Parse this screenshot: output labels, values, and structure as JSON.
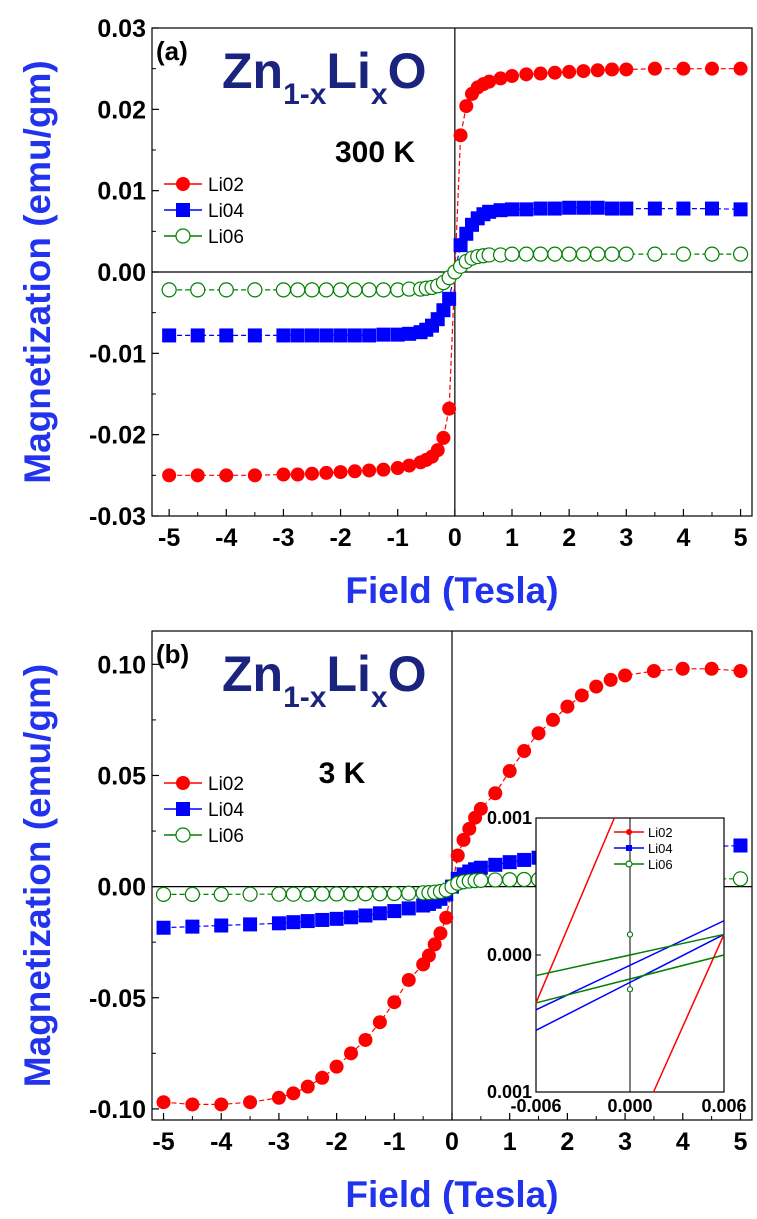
{
  "chart_data": [
    {
      "type": "line",
      "panel_label": "(a)",
      "compound": {
        "base1": "Zn",
        "sub1": "1-x",
        "base2": "Li",
        "sub2": "x",
        "base3": "O"
      },
      "temperature": "300 K",
      "xlabel": "Field (Tesla)",
      "ylabel": "Magnetization (emu/gm)",
      "xlim": [
        -5.3,
        5.2
      ],
      "ylim": [
        -0.03,
        0.03
      ],
      "xticks": [
        "-5",
        "-4",
        "-3",
        "-2",
        "-1",
        "0",
        "1",
        "2",
        "3",
        "4",
        "5"
      ],
      "yticks": [
        "-0.03",
        "-0.02",
        "-0.01",
        "0.00",
        "0.01",
        "0.02",
        "0.03"
      ],
      "legend_position": "middle-left",
      "series": [
        {
          "name": "Li02",
          "color": "#ff0000",
          "marker": "filled-circle",
          "x": [
            -5,
            -4.5,
            -4,
            -3.5,
            -3,
            -2.75,
            -2.5,
            -2.25,
            -2,
            -1.75,
            -1.5,
            -1.25,
            -1,
            -0.8,
            -0.6,
            -0.5,
            -0.4,
            -0.3,
            -0.2,
            -0.1,
            0,
            0.1,
            0.2,
            0.3,
            0.4,
            0.5,
            0.6,
            0.8,
            1,
            1.25,
            1.5,
            1.75,
            2,
            2.25,
            2.5,
            2.75,
            3,
            3.5,
            4,
            4.5,
            5
          ],
          "y": [
            -0.025,
            -0.025,
            -0.025,
            -0.025,
            -0.0249,
            -0.0249,
            -0.0248,
            -0.0247,
            -0.0246,
            -0.0245,
            -0.0244,
            -0.0243,
            -0.0241,
            -0.0238,
            -0.0234,
            -0.0231,
            -0.0227,
            -0.0219,
            -0.0204,
            -0.0168,
            0.0,
            0.0168,
            0.0204,
            0.0219,
            0.0227,
            0.0231,
            0.0234,
            0.0238,
            0.0241,
            0.0243,
            0.0244,
            0.0245,
            0.0246,
            0.0247,
            0.0248,
            0.0249,
            0.0249,
            0.025,
            0.025,
            0.025,
            0.025
          ]
        },
        {
          "name": "Li04",
          "color": "#0000ff",
          "marker": "filled-square",
          "x": [
            -5,
            -4.5,
            -4,
            -3.5,
            -3,
            -2.75,
            -2.5,
            -2.25,
            -2,
            -1.75,
            -1.5,
            -1.25,
            -1,
            -0.8,
            -0.6,
            -0.5,
            -0.4,
            -0.3,
            -0.2,
            -0.1,
            0.1,
            0.2,
            0.3,
            0.4,
            0.5,
            0.6,
            0.8,
            1,
            1.25,
            1.5,
            1.75,
            2,
            2.25,
            2.5,
            2.75,
            3,
            3.5,
            4,
            4.5,
            5
          ],
          "y": [
            -0.0078,
            -0.0078,
            -0.0078,
            -0.0078,
            -0.0078,
            -0.0078,
            -0.0078,
            -0.0078,
            -0.0078,
            -0.0078,
            -0.0078,
            -0.0077,
            -0.0077,
            -0.0076,
            -0.0074,
            -0.0071,
            -0.0066,
            -0.0058,
            -0.0047,
            -0.0033,
            0.0033,
            0.0047,
            0.0058,
            0.0066,
            0.0071,
            0.0074,
            0.0076,
            0.0077,
            0.0077,
            0.0078,
            0.0078,
            0.0079,
            0.0079,
            0.0079,
            0.0078,
            0.0078,
            0.0078,
            0.0078,
            0.0078,
            0.0077
          ]
        },
        {
          "name": "Li06",
          "color": "#008000",
          "marker": "open-circle",
          "x": [
            -5,
            -4.5,
            -4,
            -3.5,
            -3,
            -2.75,
            -2.5,
            -2.25,
            -2,
            -1.75,
            -1.5,
            -1.25,
            -1,
            -0.8,
            -0.6,
            -0.5,
            -0.4,
            -0.3,
            -0.2,
            -0.1,
            0,
            0.1,
            0.2,
            0.3,
            0.4,
            0.5,
            0.6,
            0.8,
            1,
            1.25,
            1.5,
            1.75,
            2,
            2.25,
            2.5,
            2.75,
            3,
            3.5,
            4,
            4.5,
            5
          ],
          "y": [
            -0.0022,
            -0.0022,
            -0.0022,
            -0.0022,
            -0.0022,
            -0.0022,
            -0.0022,
            -0.0022,
            -0.0022,
            -0.0022,
            -0.0022,
            -0.0022,
            -0.0022,
            -0.0021,
            -0.0021,
            -0.002,
            -0.0019,
            -0.0017,
            -0.0013,
            -0.0007,
            0.0,
            0.0007,
            0.0013,
            0.0017,
            0.0019,
            0.002,
            0.0021,
            0.0021,
            0.0022,
            0.0022,
            0.0022,
            0.0022,
            0.0022,
            0.0022,
            0.0022,
            0.0022,
            0.0022,
            0.0022,
            0.0022,
            0.0022,
            0.0022
          ]
        }
      ]
    },
    {
      "type": "line",
      "panel_label": "(b)",
      "compound": {
        "base1": "Zn",
        "sub1": "1-x",
        "base2": "Li",
        "sub2": "x",
        "base3": "O"
      },
      "temperature": "3 K",
      "xlabel": "Field (Tesla)",
      "ylabel": "Magnetization (emu/gm)",
      "xlim": [
        -5.2,
        5.2
      ],
      "ylim": [
        -0.105,
        0.115
      ],
      "xticks": [
        "-5",
        "-4",
        "-3",
        "-2",
        "-1",
        "0",
        "1",
        "2",
        "3",
        "4",
        "5"
      ],
      "yticks": [
        "-0.10",
        "-0.05",
        "0.00",
        "0.05",
        "0.10"
      ],
      "legend_position": "middle-left",
      "series": [
        {
          "name": "Li02",
          "color": "#ff0000",
          "marker": "filled-circle",
          "x": [
            -5,
            -4.5,
            -4,
            -3.5,
            -3,
            -2.75,
            -2.5,
            -2.25,
            -2,
            -1.75,
            -1.5,
            -1.25,
            -1,
            -0.75,
            -0.5,
            -0.4,
            -0.3,
            -0.2,
            -0.1,
            0,
            0.1,
            0.2,
            0.3,
            0.4,
            0.5,
            0.75,
            1,
            1.25,
            1.5,
            1.75,
            2,
            2.25,
            2.5,
            2.75,
            3,
            3.5,
            4,
            4.5,
            5
          ],
          "y": [
            -0.097,
            -0.098,
            -0.098,
            -0.097,
            -0.095,
            -0.093,
            -0.09,
            -0.086,
            -0.081,
            -0.075,
            -0.069,
            -0.061,
            -0.052,
            -0.042,
            -0.035,
            -0.031,
            -0.026,
            -0.021,
            -0.014,
            0.0,
            0.014,
            0.021,
            0.026,
            0.031,
            0.035,
            0.042,
            0.052,
            0.061,
            0.069,
            0.075,
            0.081,
            0.086,
            0.09,
            0.093,
            0.095,
            0.097,
            0.098,
            0.098,
            0.097
          ]
        },
        {
          "name": "Li04",
          "color": "#0000ff",
          "marker": "filled-square",
          "x": [
            -5,
            -4.5,
            -4,
            -3.5,
            -3,
            -2.75,
            -2.5,
            -2.25,
            -2,
            -1.75,
            -1.5,
            -1.25,
            -1,
            -0.75,
            -0.5,
            -0.4,
            -0.3,
            -0.2,
            -0.1,
            0,
            0.1,
            0.2,
            0.3,
            0.4,
            0.5,
            0.75,
            1,
            1.25,
            1.5,
            1.75,
            2,
            2.25,
            2.5,
            2.75,
            3,
            3.5,
            4,
            4.5,
            5
          ],
          "y": [
            -0.0185,
            -0.018,
            -0.0175,
            -0.017,
            -0.0165,
            -0.016,
            -0.0155,
            -0.015,
            -0.0145,
            -0.0138,
            -0.013,
            -0.012,
            -0.011,
            -0.0098,
            -0.0085,
            -0.0078,
            -0.0068,
            -0.0055,
            -0.0035,
            0.0,
            0.0035,
            0.0055,
            0.0068,
            0.0078,
            0.0085,
            0.0098,
            0.011,
            0.012,
            0.013,
            0.0138,
            0.0145,
            0.015,
            0.0155,
            0.016,
            0.0165,
            0.017,
            0.0175,
            0.018,
            0.0185
          ]
        },
        {
          "name": "Li06",
          "color": "#008000",
          "marker": "open-circle",
          "x": [
            -5,
            -4.5,
            -4,
            -3.5,
            -3,
            -2.75,
            -2.5,
            -2.25,
            -2,
            -1.75,
            -1.5,
            -1.25,
            -1,
            -0.75,
            -0.5,
            -0.4,
            -0.3,
            -0.2,
            -0.1,
            0,
            0.1,
            0.2,
            0.3,
            0.4,
            0.5,
            0.75,
            1,
            1.25,
            1.5,
            1.75,
            2,
            2.25,
            2.5,
            2.75,
            3,
            3.5,
            4,
            4.5,
            5
          ],
          "y": [
            -0.0035,
            -0.0035,
            -0.0035,
            -0.0034,
            -0.0034,
            -0.0034,
            -0.0034,
            -0.0033,
            -0.0033,
            -0.0033,
            -0.0032,
            -0.0032,
            -0.0031,
            -0.003,
            -0.0028,
            -0.0027,
            -0.0025,
            -0.0022,
            -0.0015,
            0.0,
            0.0015,
            0.0022,
            0.0025,
            0.0027,
            0.0028,
            0.003,
            0.0031,
            0.0032,
            0.0032,
            0.0033,
            0.0033,
            0.0033,
            0.0034,
            0.0034,
            0.0034,
            0.0034,
            0.0035,
            0.0035,
            0.0035
          ]
        }
      ]
    },
    {
      "type": "line",
      "panel_label": "inset of (b)",
      "xlim": [
        -0.006,
        0.006
      ],
      "ylim": [
        -0.001,
        0.001
      ],
      "xticks": [
        "-0.006",
        "0.000",
        "0.006"
      ],
      "yticks": [
        "0.001",
        "0.000",
        "0.001"
      ],
      "legend_position": "top-right",
      "series": [
        {
          "name": "Li02",
          "color": "#ff0000",
          "marker": "small-filled-circle",
          "x": [
            -0.006,
            -0.001,
            0.0015,
            0.006
          ],
          "y": [
            -0.00035,
            0.001,
            -0.001,
            0.00015
          ]
        },
        {
          "name": "Li04",
          "color": "#0000ff",
          "marker": "small-filled-square",
          "x": [
            -0.006,
            0.006,
            -0.006,
            0.006
          ],
          "y": [
            -0.0004,
            0.00025,
            -0.00055,
            0.00015
          ]
        },
        {
          "name": "Li06",
          "color": "#008000",
          "marker": "small-open-circle",
          "x": [
            -0.006,
            0.006,
            -0.006,
            0.006
          ],
          "y": [
            -0.00015,
            0.00015,
            -0.00035,
            0.0
          ]
        }
      ]
    }
  ]
}
